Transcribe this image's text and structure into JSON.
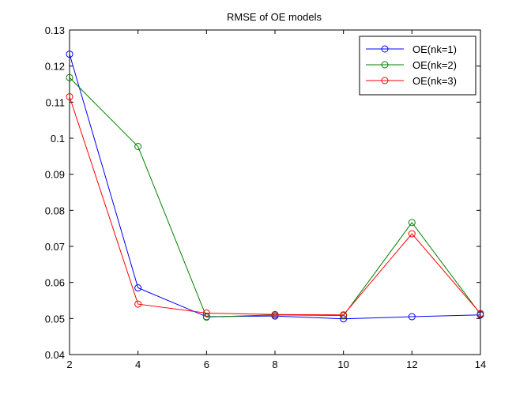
{
  "chart_data": {
    "type": "line",
    "title": "RMSE of OE models",
    "xlabel": "",
    "ylabel": "",
    "x": [
      2,
      4,
      6,
      8,
      10,
      12,
      14
    ],
    "xlim": [
      2,
      14
    ],
    "ylim": [
      0.04,
      0.13
    ],
    "xticks": [
      "2",
      "4",
      "6",
      "8",
      "10",
      "12",
      "14"
    ],
    "yticks": [
      "0.04",
      "0.05",
      "0.06",
      "0.07",
      "0.08",
      "0.09",
      "0.1",
      "0.11",
      "0.12",
      "0.13"
    ],
    "grid": false,
    "legend_position": "top-right",
    "marker": "circle",
    "series": [
      {
        "name": "OE(nk=1)",
        "color": "#0000ff",
        "values": [
          0.1233,
          0.0585,
          0.0505,
          0.0507,
          0.0499,
          0.0505,
          0.051
        ]
      },
      {
        "name": "OE(nk=2)",
        "color": "#008000",
        "values": [
          0.1168,
          0.0977,
          0.0504,
          0.051,
          0.0508,
          0.0766,
          0.0512
        ]
      },
      {
        "name": "OE(nk=3)",
        "color": "#ff0000",
        "values": [
          0.1115,
          0.054,
          0.0515,
          0.0511,
          0.051,
          0.0735,
          0.0514
        ]
      }
    ]
  }
}
